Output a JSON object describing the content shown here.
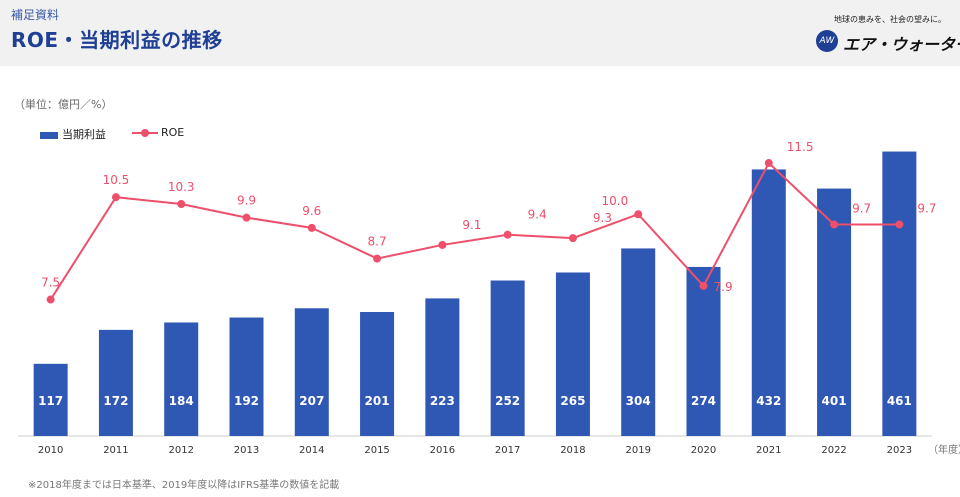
{
  "header": {
    "supplement": "補足資料",
    "title": "ROE・当期利益の推移",
    "tagline": "地球の恵みを、社会の望みに。",
    "logo_mark": "AW",
    "logo_text": "エア・ウォーター"
  },
  "footnote": "※2018年度までは日本基準、2019年度以降はIFRS基準の数値を記載",
  "colors": {
    "bar": "#2f57b4",
    "line": "#ee4f6a",
    "title": "#1f3f94"
  },
  "chart_data": {
    "type": "bar",
    "unit_label": "（単位：億円／%）",
    "x_unit_label": "（年度）",
    "categories": [
      "2010",
      "2011",
      "2012",
      "2013",
      "2014",
      "2015",
      "2016",
      "2017",
      "2018",
      "2019",
      "2020",
      "2021",
      "2022",
      "2023"
    ],
    "series": [
      {
        "name": "当期利益",
        "kind": "bar",
        "values": [
          117,
          172,
          184,
          192,
          207,
          201,
          223,
          252,
          265,
          304,
          274,
          432,
          401,
          461
        ]
      },
      {
        "name": "ROE",
        "kind": "line",
        "values": [
          7.5,
          10.5,
          10.3,
          9.9,
          9.6,
          8.7,
          9.1,
          9.4,
          9.3,
          10.0,
          7.9,
          11.5,
          9.7,
          9.7
        ]
      }
    ],
    "bar_axis_range": [
      0,
      470
    ],
    "roe_axis_range": [
      3.5,
      12.0
    ],
    "legend_position": "top-left",
    "grid": false
  }
}
